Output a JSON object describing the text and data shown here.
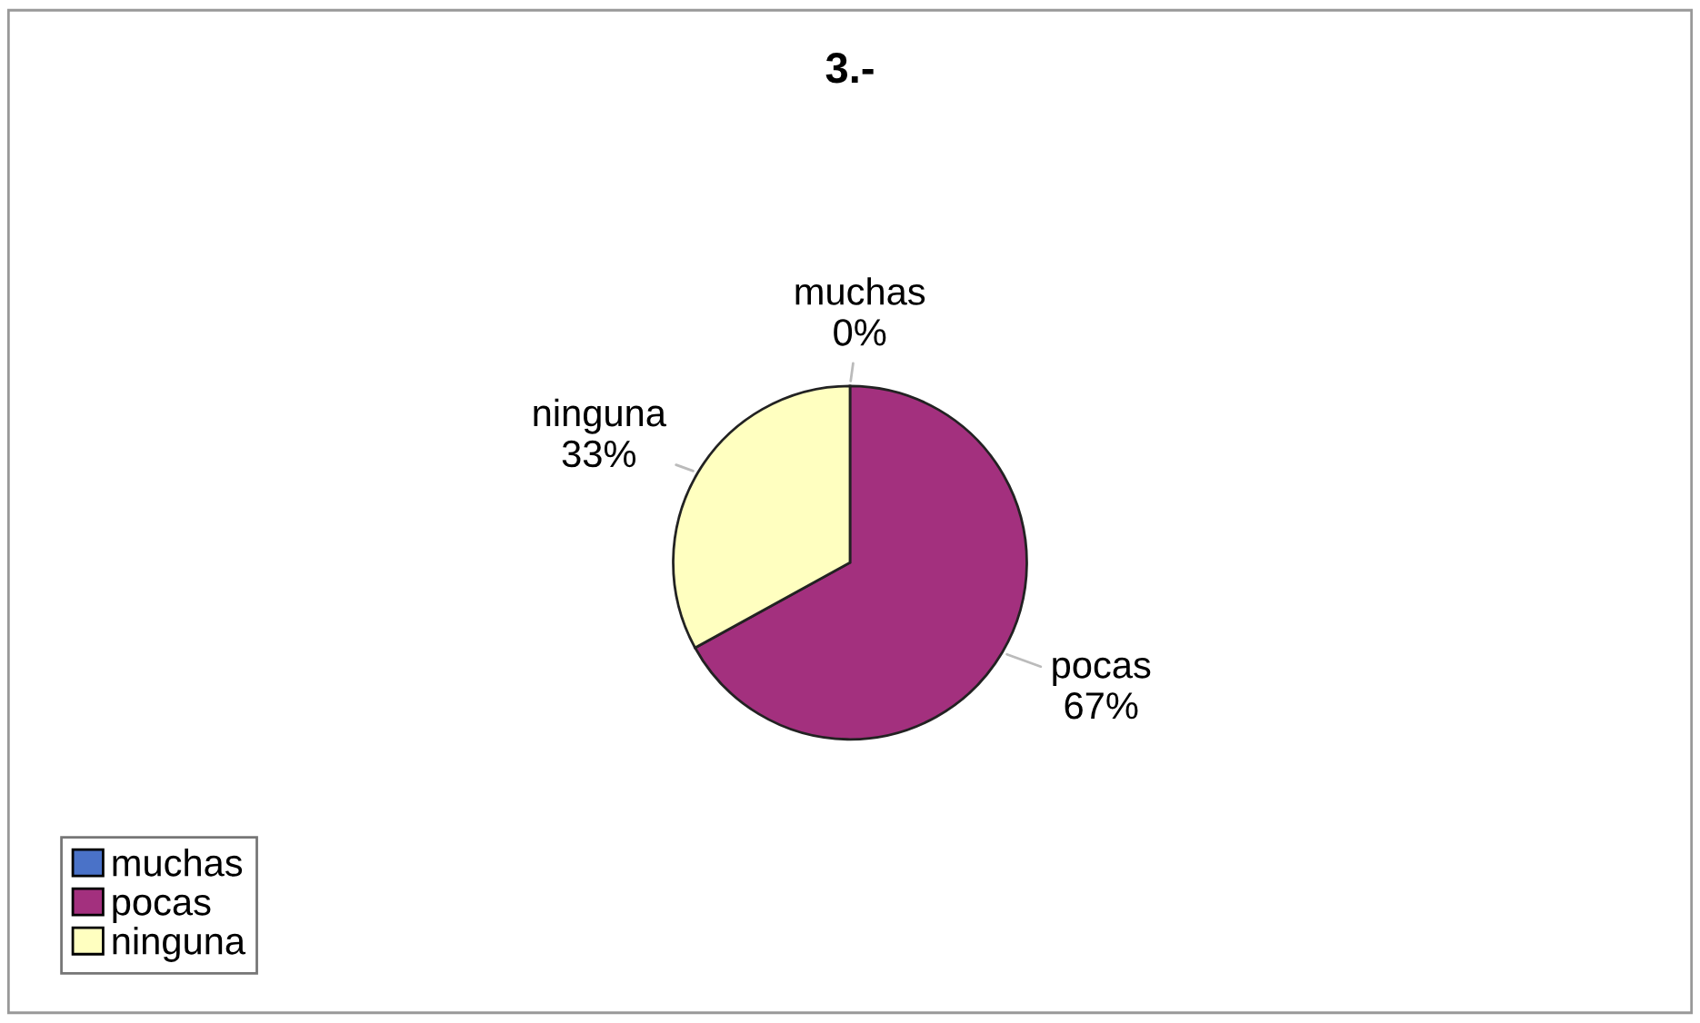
{
  "chart_data": {
    "type": "pie",
    "title": "3.-",
    "categories": [
      "muchas",
      "pocas",
      "ninguna"
    ],
    "values": [
      0,
      67,
      33
    ],
    "value_labels": [
      "0%",
      "67%",
      "33%"
    ],
    "colors": [
      "#4a72c8",
      "#a3307e",
      "#ffffc0"
    ],
    "legend": "bottom left"
  }
}
